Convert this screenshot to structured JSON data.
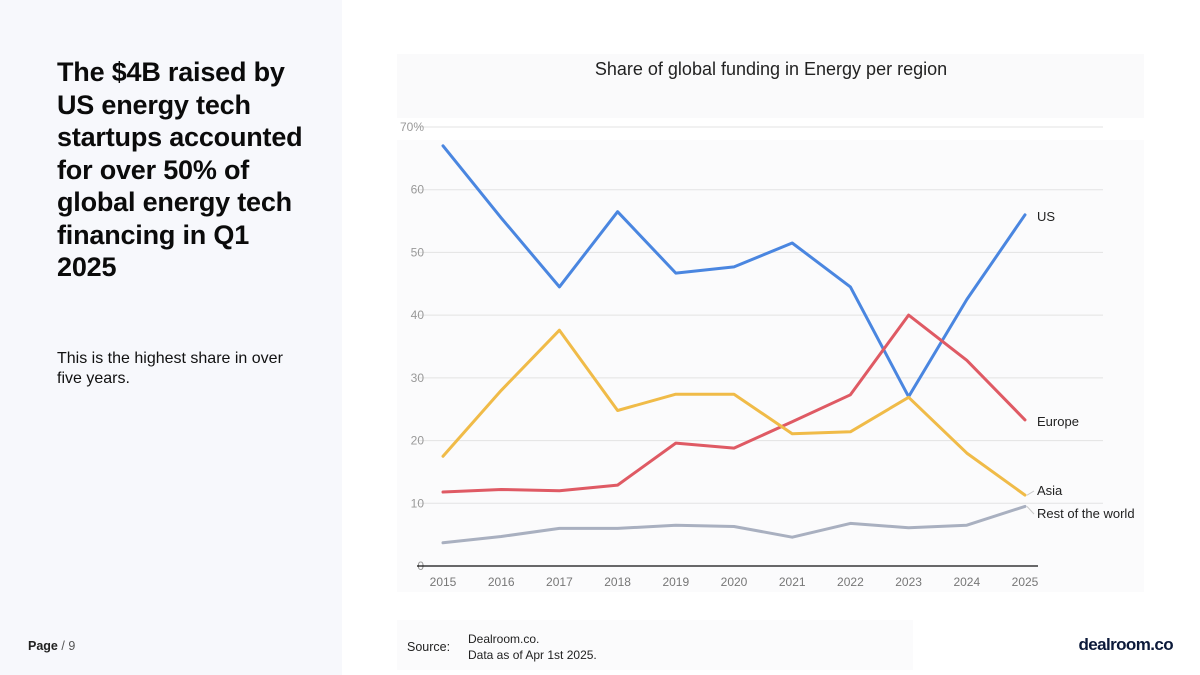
{
  "headline": "The $4B raised by US energy tech startups accounted for over 50% of global energy tech financing in Q1 2025",
  "subtext": "This is the highest share in over five years.",
  "footer": {
    "page_word": "Page",
    "page_count": "/ 9",
    "source_label": "Source:",
    "source_name": "Dealroom.co.",
    "source_date": "Data as of Apr 1st 2025.",
    "logo_text": "dealroom.co"
  },
  "chart_data": {
    "type": "line",
    "title": "Share of global funding in Energy per region",
    "x": [
      "2015",
      "2016",
      "2017",
      "2018",
      "2019",
      "2020",
      "2021",
      "2022",
      "2023",
      "2024",
      "2025"
    ],
    "y_ticks": [
      "0",
      "10",
      "20",
      "30",
      "40",
      "50",
      "60",
      "70%"
    ],
    "ylim": [
      0,
      70
    ],
    "grid": true,
    "legend": "direct labels at line ends",
    "series": [
      {
        "name": "US",
        "color": "#4a86e0",
        "values": [
          67,
          55.5,
          44.5,
          56.5,
          46.7,
          47.7,
          51.5,
          44.5,
          27,
          42.5,
          56
        ]
      },
      {
        "name": "Europe",
        "color": "#df5a64",
        "values": [
          11.8,
          12.2,
          12,
          12.9,
          19.6,
          18.8,
          23,
          27.3,
          40,
          32.8,
          23.3
        ]
      },
      {
        "name": "Asia",
        "color": "#f0bb48",
        "values": [
          17.5,
          28,
          37.6,
          24.8,
          27.4,
          27.4,
          21.1,
          21.4,
          26.9,
          18,
          11.3
        ]
      },
      {
        "name": "Rest of the world",
        "color": "#a9b0c0",
        "values": [
          3.7,
          4.7,
          6,
          6,
          6.5,
          6.3,
          4.6,
          6.8,
          6.1,
          6.5,
          9.5
        ]
      }
    ]
  }
}
